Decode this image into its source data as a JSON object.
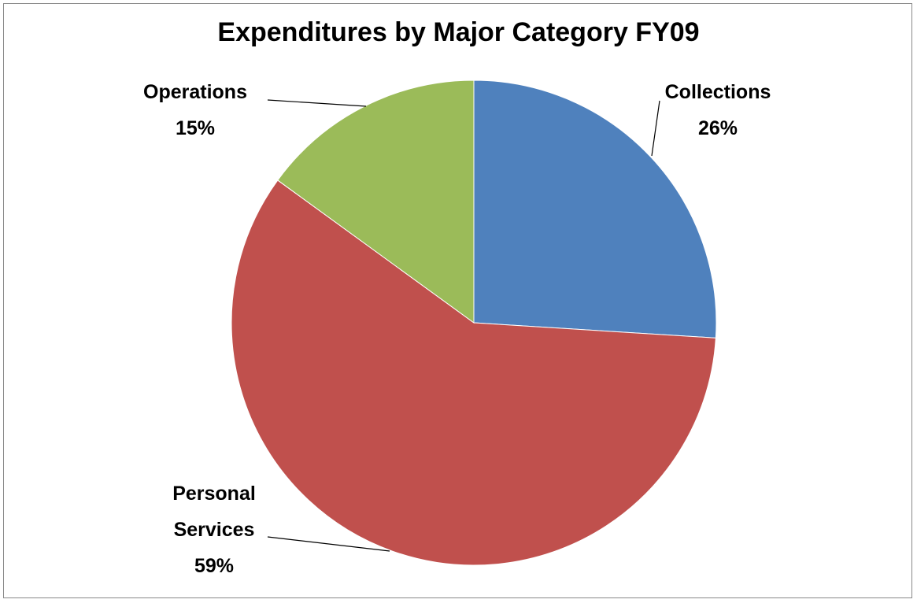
{
  "chart_data": {
    "type": "pie",
    "title": "Expenditures by Major Category FY09",
    "categories": [
      "Collections",
      "Personal Services",
      "Operations"
    ],
    "values": [
      26,
      59,
      15
    ],
    "value_labels": [
      "26%",
      "59%",
      "15%"
    ],
    "colors": [
      "#4f81bd",
      "#c0504d",
      "#9bbb59"
    ]
  }
}
